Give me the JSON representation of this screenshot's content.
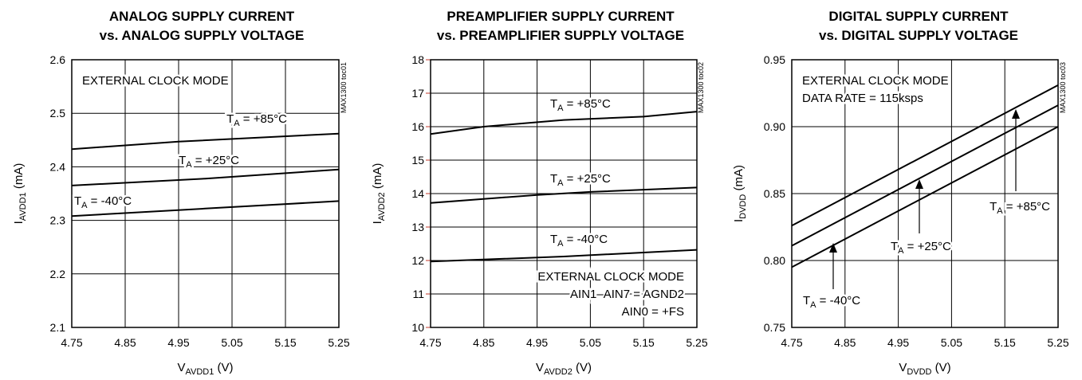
{
  "chart_data": [
    {
      "type": "line",
      "title": [
        "ANALOG SUPPLY CURRENT",
        "vs. ANALOG SUPPLY VOLTAGE"
      ],
      "tag": "MAX1300 toc01",
      "xlabel": {
        "main": "V",
        "sub": "AVDD1",
        "unit": " (V)"
      },
      "ylabel": {
        "main": "I",
        "sub": "AVDD1",
        "unit": " (mA)"
      },
      "xlim": [
        4.75,
        5.25
      ],
      "ylim": [
        2.1,
        2.6
      ],
      "xticks": [
        "4.75",
        "4.85",
        "4.95",
        "5.05",
        "5.15",
        "5.25"
      ],
      "yticks": [
        "2.1",
        "2.2",
        "2.3",
        "2.4",
        "2.5",
        "2.6"
      ],
      "grid": true,
      "notes": [
        "EXTERNAL CLOCK MODE"
      ],
      "series": [
        {
          "label": {
            "main": "T",
            "sub": "A",
            "rest": " = +85°C"
          },
          "x": [
            4.75,
            4.95,
            5.25
          ],
          "y": [
            2.433,
            2.447,
            2.462
          ]
        },
        {
          "label": {
            "main": "T",
            "sub": "A",
            "rest": " = +25°C"
          },
          "x": [
            4.75,
            5.0,
            5.25
          ],
          "y": [
            2.365,
            2.378,
            2.395
          ]
        },
        {
          "label": {
            "main": "T",
            "sub": "A",
            "rest": " = -40°C"
          },
          "x": [
            4.75,
            5.0,
            5.25
          ],
          "y": [
            2.308,
            2.322,
            2.336
          ]
        }
      ]
    },
    {
      "type": "line",
      "title": [
        "PREAMPLIFIER SUPPLY CURRENT",
        "vs. PREAMPLIFIER SUPPLY VOLTAGE"
      ],
      "tag": "MAX1300 toc02",
      "xlabel": {
        "main": "V",
        "sub": "AVDD2",
        "unit": " (V)"
      },
      "ylabel": {
        "main": "I",
        "sub": "AVDD2",
        "unit": " (mA)"
      },
      "xlim": [
        4.75,
        5.25
      ],
      "ylim": [
        10,
        18
      ],
      "xticks": [
        "4.75",
        "4.85",
        "4.95",
        "5.05",
        "5.15",
        "5.25"
      ],
      "yticks": [
        "10",
        "11",
        "12",
        "13",
        "14",
        "15",
        "16",
        "17",
        "18"
      ],
      "grid": true,
      "notes": [
        "EXTERNAL CLOCK MODE",
        "AIN1–AIN7 = AGND2",
        "AIN0 = +FS"
      ],
      "series": [
        {
          "label": {
            "main": "T",
            "sub": "A",
            "rest": " = +85°C"
          },
          "x": [
            4.75,
            4.85,
            5.0,
            5.15,
            5.25
          ],
          "y": [
            15.78,
            16.0,
            16.2,
            16.3,
            16.45
          ]
        },
        {
          "label": {
            "main": "T",
            "sub": "A",
            "rest": " = +25°C"
          },
          "x": [
            4.75,
            4.95,
            5.05,
            5.25
          ],
          "y": [
            13.72,
            13.96,
            14.05,
            14.18
          ]
        },
        {
          "label": {
            "main": "T",
            "sub": "A",
            "rest": " = -40°C"
          },
          "x": [
            4.75,
            5.0,
            5.25
          ],
          "y": [
            11.97,
            12.12,
            12.32
          ]
        }
      ]
    },
    {
      "type": "line",
      "title": [
        "DIGITAL SUPPLY CURRENT",
        "vs. DIGITAL SUPPLY VOLTAGE"
      ],
      "tag": "MAX1300 toc03",
      "xlabel": {
        "main": "V",
        "sub": "DVDD",
        "unit": " (V)"
      },
      "ylabel": {
        "main": "I",
        "sub": "DVDD",
        "unit": " (mA)"
      },
      "xlim": [
        4.75,
        5.25
      ],
      "ylim": [
        0.75,
        0.95
      ],
      "xticks": [
        "4.75",
        "4.85",
        "4.95",
        "5.05",
        "5.15",
        "5.25"
      ],
      "yticks": [
        "0.75",
        "0.80",
        "0.85",
        "0.90",
        "0.95"
      ],
      "grid": true,
      "notes": [
        "EXTERNAL CLOCK MODE",
        "DATA RATE = 115ksps"
      ],
      "series": [
        {
          "label": {
            "main": "T",
            "sub": "A",
            "rest": " = +85°C"
          },
          "x": [
            4.75,
            5.25
          ],
          "y": [
            0.826,
            0.931
          ]
        },
        {
          "label": {
            "main": "T",
            "sub": "A",
            "rest": " = +25°C"
          },
          "x": [
            4.75,
            5.25
          ],
          "y": [
            0.811,
            0.916
          ]
        },
        {
          "label": {
            "main": "T",
            "sub": "A",
            "rest": " = -40°C"
          },
          "x": [
            4.75,
            5.25
          ],
          "y": [
            0.795,
            0.9
          ]
        }
      ]
    }
  ]
}
